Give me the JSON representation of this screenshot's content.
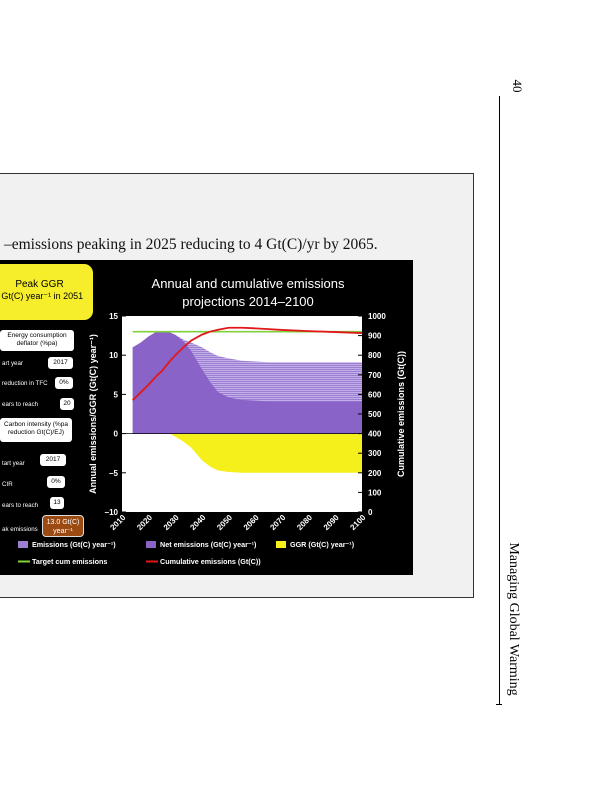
{
  "page": {
    "number": "40",
    "running_title": "Managing Global Warming"
  },
  "caption": "–emissions peaking in 2025 reducing to 4 Gt(C)/yr by 2065.",
  "controls": {
    "peak_ggr_title": "Peak GGR",
    "peak_ggr_value": ") Gt(C) year⁻¹ in 2051",
    "energy_deflator_label": "Energy consumption deflator (%pa)",
    "energy_start_year_label": "art year",
    "energy_start_year_value": "2017",
    "reduction_tfc_label": "reduction in TFC",
    "reduction_tfc_value": "0%",
    "years_to_reach_label_1": "ears to reach",
    "years_to_reach_value_1": "20",
    "carbon_intensity_label": "Carbon intensity (%pa reduction Gt(C)/EJ)",
    "ci_start_year_label": "tart year",
    "ci_start_year_value": "2017",
    "cir_label": "CIR",
    "cir_value": "0%",
    "years_to_reach_label_2": "ears to reach",
    "years_to_reach_value_2": "13",
    "peak_emissions_label": "ak emissions",
    "peak_emissions_value": "13.0 Gt(C) year⁻¹"
  },
  "colors": {
    "emissions": "#9c7fd0",
    "net_emissions": "#8a63c8",
    "ggr": "#f5ef1c",
    "target": "#7fd23c",
    "cumulative": "#e01818",
    "peak_box": "#f6ee2a",
    "peak_emissions_box": "#9b4a12"
  },
  "chart_data": {
    "type": "area",
    "title": "Annual and cumulative emissions projections 2014–2100",
    "xlabel": "",
    "ylabel": "Annual emissions/GGR (Gt(C) year⁻¹)",
    "y2label": "Cumulative emissions (Gt(C))",
    "xlim": [
      2010,
      2100
    ],
    "ylim": [
      -10,
      15
    ],
    "y2lim": [
      0,
      1000
    ],
    "xticks": [
      "2010",
      "2020",
      "2030",
      "2040",
      "2050",
      "2060",
      "2070",
      "2080",
      "2090",
      "2100"
    ],
    "yticks": [
      "15",
      "10",
      "5",
      "0",
      "−5",
      "−10"
    ],
    "y2ticks": [
      "1000",
      "900",
      "800",
      "700",
      "600",
      "500",
      "400",
      "300",
      "200",
      "100",
      "0"
    ],
    "x": [
      2014,
      2017,
      2020,
      2023,
      2025,
      2028,
      2030,
      2033,
      2036,
      2040,
      2043,
      2046,
      2050,
      2055,
      2060,
      2065,
      2070,
      2080,
      2090,
      2100
    ],
    "series": [
      {
        "name": "Emissions (Gt(C) year⁻¹)",
        "axis": "left",
        "values": [
          11.0,
          11.6,
          12.4,
          13.0,
          13.0,
          12.9,
          12.6,
          12.0,
          11.6,
          11.0,
          10.4,
          9.9,
          9.6,
          9.3,
          9.2,
          9.1,
          9.1,
          9.1,
          9.1,
          9.1
        ]
      },
      {
        "name": "Net emissions (Gt(C) year⁻¹)",
        "axis": "left",
        "values": [
          11.0,
          11.6,
          12.4,
          13.0,
          13.0,
          12.9,
          12.6,
          11.8,
          10.5,
          8.2,
          6.6,
          5.3,
          4.6,
          4.3,
          4.2,
          4.1,
          4.1,
          4.1,
          4.1,
          4.1
        ]
      },
      {
        "name": "GGR (Gt(C) year⁻¹)",
        "axis": "left",
        "values": [
          0,
          0,
          0,
          0,
          0,
          0,
          -0.4,
          -1.0,
          -1.8,
          -3.4,
          -4.2,
          -4.7,
          -4.9,
          -5.0,
          -5.0,
          -5.0,
          -5.0,
          -5.0,
          -5.0,
          -5.0
        ]
      },
      {
        "name": "Target cum emissions",
        "axis": "right",
        "values": [
          920,
          920,
          920,
          920,
          920,
          920,
          920,
          920,
          920,
          920,
          920,
          920,
          920,
          920,
          920,
          920,
          920,
          920,
          920,
          920
        ]
      },
      {
        "name": "Cumulative emissions (Gt(C))",
        "axis": "right",
        "values": [
          570,
          610,
          650,
          695,
          720,
          770,
          800,
          840,
          875,
          905,
          920,
          930,
          940,
          940,
          937,
          933,
          929,
          923,
          918,
          913
        ]
      }
    ],
    "legend": "bottom",
    "grid": false
  }
}
